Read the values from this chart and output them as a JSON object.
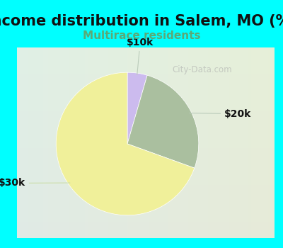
{
  "title": "Income distribution in Salem, MO (%)",
  "subtitle": "Multirace residents",
  "title_fontsize": 15,
  "subtitle_fontsize": 11,
  "title_color": "#111111",
  "subtitle_color": "#5aaa77",
  "background_color": "#00ffff",
  "chart_bg_color": "#d8ede5",
  "slices": [
    {
      "label": "$10k",
      "value": 4.5,
      "color": "#ccbbee"
    },
    {
      "label": "$20k",
      "value": 26.0,
      "color": "#aabf9f"
    },
    {
      "label": "$30k",
      "value": 69.5,
      "color": "#f0f09a"
    }
  ],
  "label_fontsize": 10,
  "label_color": "#111111",
  "line_color": "#aaccaa",
  "watermark": "City-Data.com",
  "watermark_color": "#aaaaaa"
}
